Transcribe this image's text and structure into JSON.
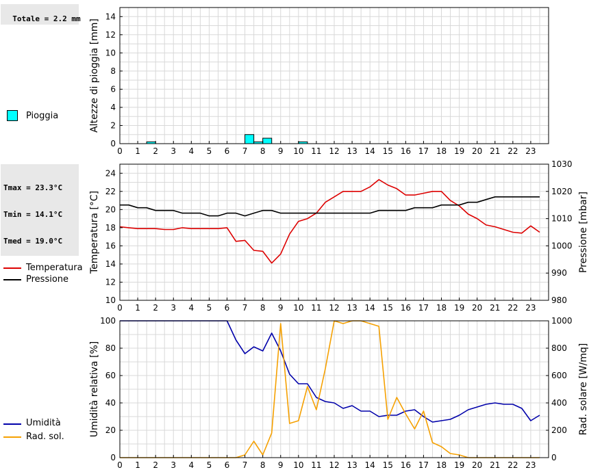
{
  "rain_total": "Totale = 2.2 mm",
  "temp_stats": {
    "tmax": "Tmax = 23.3°C",
    "tmin": "Tmin = 14.1°C",
    "tmed": "Tmed = 19.0°C"
  },
  "legends": {
    "rain": "Pioggia",
    "temperature": "Temperatura",
    "pressure": "Pressione",
    "humidity": "Umidità",
    "solar": "Rad. sol."
  },
  "colors": {
    "rain": "#00ffff",
    "temperature": "#dd0000",
    "pressure": "#000000",
    "humidity": "#0000aa",
    "solar": "#f5a000"
  },
  "chart_data": [
    {
      "type": "bar",
      "ylabel": "Altezze di pioggia [mm]",
      "ylim": [
        0,
        15
      ],
      "y_ticks": [
        0,
        2,
        4,
        6,
        8,
        10,
        12,
        14
      ],
      "x_ticks": [
        "0",
        "1",
        "2",
        "3",
        "4",
        "5",
        "6",
        "7",
        "8",
        "9",
        "10",
        "11",
        "12",
        "13",
        "14",
        "15",
        "16",
        "17",
        "18",
        "19",
        "20",
        "21",
        "22",
        "23"
      ],
      "xlim": [
        0,
        24
      ],
      "grid": true,
      "series": [
        {
          "name": "Pioggia",
          "x": [
            1.5,
            7.0,
            7.5,
            8.0,
            10.0
          ],
          "values": [
            0.2,
            1.0,
            0.2,
            0.6,
            0.2
          ]
        }
      ]
    },
    {
      "type": "line",
      "ylabel": "Temperatura [°C]",
      "y2label": "Pressione [mbar]",
      "ylim": [
        10,
        25
      ],
      "y_ticks": [
        10,
        12,
        14,
        16,
        18,
        20,
        22,
        24
      ],
      "y2lim": [
        980,
        1030
      ],
      "y2_ticks": [
        980,
        990,
        1000,
        1010,
        1020,
        1030
      ],
      "x_ticks": [
        "0",
        "1",
        "2",
        "3",
        "4",
        "5",
        "6",
        "7",
        "8",
        "9",
        "10",
        "11",
        "12",
        "13",
        "14",
        "15",
        "16",
        "17",
        "18",
        "19",
        "20",
        "21",
        "22",
        "23"
      ],
      "xlim": [
        0,
        24
      ],
      "grid": true,
      "series": [
        {
          "name": "Temperatura",
          "axis": "left",
          "x": [
            0,
            0.5,
            1,
            1.5,
            2,
            2.5,
            3,
            3.5,
            4,
            4.5,
            5,
            5.5,
            6,
            6.5,
            7,
            7.5,
            8,
            8.5,
            9,
            9.5,
            10,
            10.5,
            11,
            11.5,
            12,
            12.5,
            13,
            13.5,
            14,
            14.5,
            15,
            15.5,
            16,
            16.5,
            17,
            17.5,
            18,
            18.5,
            19,
            19.5,
            20,
            20.5,
            21,
            21.5,
            22,
            22.5,
            23,
            23.5
          ],
          "values": [
            18.1,
            18.0,
            17.9,
            17.9,
            17.9,
            17.8,
            17.8,
            18.0,
            17.9,
            17.9,
            17.9,
            17.9,
            18.0,
            16.5,
            16.6,
            15.5,
            15.4,
            14.1,
            15.1,
            17.3,
            18.7,
            19.0,
            19.6,
            20.8,
            21.4,
            22.0,
            22.0,
            22.0,
            22.5,
            23.3,
            22.7,
            22.3,
            21.6,
            21.6,
            21.8,
            22.0,
            22.0,
            21.0,
            20.4,
            19.5,
            19.0,
            18.3,
            18.1,
            17.8,
            17.5,
            17.4,
            18.2,
            17.5
          ]
        },
        {
          "name": "Pressione",
          "axis": "right",
          "x": [
            0,
            0.5,
            1,
            1.5,
            2,
            2.5,
            3,
            3.5,
            4,
            4.5,
            5,
            5.5,
            6,
            6.5,
            7,
            7.5,
            8,
            8.5,
            9,
            9.5,
            10,
            10.5,
            11,
            11.5,
            12,
            12.5,
            13,
            13.5,
            14,
            14.5,
            15,
            15.5,
            16,
            16.5,
            17,
            17.5,
            18,
            18.5,
            19,
            19.5,
            20,
            20.5,
            21,
            21.5,
            22,
            22.5,
            23,
            23.5
          ],
          "values": [
            1015,
            1015,
            1014,
            1014,
            1013,
            1013,
            1013,
            1012,
            1012,
            1012,
            1011,
            1011,
            1012,
            1012,
            1011,
            1012,
            1013,
            1013,
            1012,
            1012,
            1012,
            1012,
            1012,
            1012,
            1012,
            1012,
            1012,
            1012,
            1012,
            1013,
            1013,
            1013,
            1013,
            1014,
            1014,
            1014,
            1015,
            1015,
            1015,
            1016,
            1016,
            1017,
            1018,
            1018,
            1018,
            1018,
            1018,
            1018
          ]
        }
      ]
    },
    {
      "type": "line",
      "ylabel": "Umidità relativa [%]",
      "y2label": "Rad. solare [W/mq]",
      "ylim": [
        0,
        100
      ],
      "y_ticks": [
        0,
        20,
        40,
        60,
        80,
        100
      ],
      "y2lim": [
        0,
        1000
      ],
      "y2_ticks": [
        0,
        200,
        400,
        600,
        800,
        1000
      ],
      "x_ticks": [
        "0",
        "1",
        "2",
        "3",
        "4",
        "5",
        "6",
        "7",
        "8",
        "9",
        "10",
        "11",
        "12",
        "13",
        "14",
        "15",
        "16",
        "17",
        "18",
        "19",
        "20",
        "21",
        "22",
        "23"
      ],
      "xlim": [
        0,
        24
      ],
      "grid": true,
      "series": [
        {
          "name": "Umidità",
          "axis": "left",
          "x": [
            0,
            0.5,
            1,
            1.5,
            2,
            2.5,
            3,
            3.5,
            4,
            4.5,
            5,
            5.5,
            6,
            6.5,
            7,
            7.5,
            8,
            8.5,
            9,
            9.5,
            10,
            10.5,
            11,
            11.5,
            12,
            12.5,
            13,
            13.5,
            14,
            14.5,
            15,
            15.5,
            16,
            16.5,
            17,
            17.5,
            18,
            18.5,
            19,
            19.5,
            20,
            20.5,
            21,
            21.5,
            22,
            22.5,
            23,
            23.5
          ],
          "values": [
            100,
            100,
            100,
            100,
            100,
            100,
            100,
            100,
            100,
            100,
            100,
            100,
            100,
            86,
            76,
            81,
            78,
            91,
            78,
            61,
            54,
            54,
            44,
            41,
            40,
            36,
            38,
            34,
            34,
            30,
            31,
            31,
            34,
            35,
            30,
            26,
            27,
            28,
            31,
            35,
            37,
            39,
            40,
            39,
            39,
            36,
            27,
            31
          ]
        },
        {
          "name": "Rad. sol.",
          "axis": "right",
          "x": [
            0,
            0.5,
            1,
            1.5,
            2,
            2.5,
            3,
            3.5,
            4,
            4.5,
            5,
            5.5,
            6,
            6.5,
            7,
            7.5,
            8,
            8.5,
            9,
            9.5,
            10,
            10.5,
            11,
            11.5,
            12,
            12.5,
            13,
            13.5,
            14,
            14.5,
            15,
            15.5,
            16,
            16.5,
            17,
            17.5,
            18,
            18.5,
            19,
            19.5,
            20,
            20.5,
            21,
            21.5,
            22,
            22.5,
            23,
            23.5
          ],
          "values": [
            0,
            0,
            0,
            0,
            0,
            0,
            0,
            0,
            0,
            0,
            0,
            0,
            0,
            0,
            20,
            120,
            20,
            180,
            980,
            250,
            270,
            520,
            350,
            650,
            1000,
            980,
            1000,
            1000,
            980,
            960,
            280,
            440,
            320,
            210,
            340,
            110,
            80,
            30,
            20,
            0,
            0,
            0,
            0,
            0,
            0,
            0,
            0,
            0
          ]
        }
      ]
    }
  ]
}
